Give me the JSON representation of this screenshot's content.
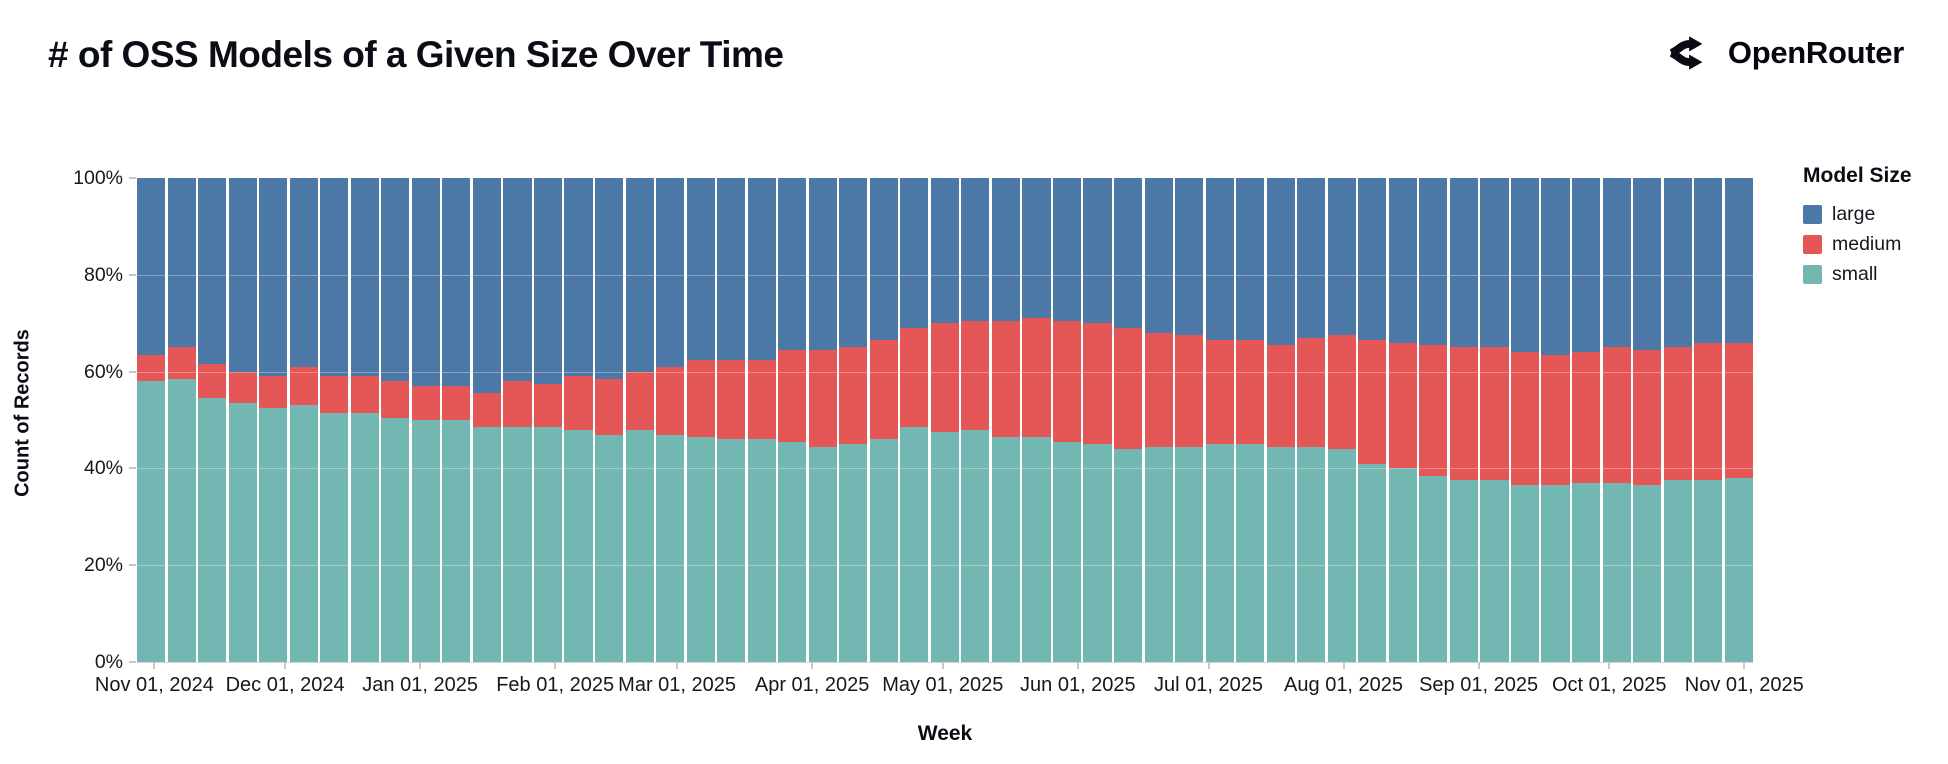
{
  "header": {
    "title": "# of OSS Models of a Given Size Over Time",
    "brand": "OpenRouter"
  },
  "chart_data": {
    "type": "bar",
    "stacked": true,
    "normalized_percent": true,
    "title": "# of OSS Models of a Given Size Over Time",
    "xlabel": "Week",
    "ylabel": "Count of Records",
    "ylim": [
      0,
      100
    ],
    "grid": true,
    "y_ticks": [
      {
        "value": 100,
        "label": "100%"
      },
      {
        "value": 80,
        "label": "80%"
      },
      {
        "value": 60,
        "label": "60%"
      },
      {
        "value": 40,
        "label": "40%"
      },
      {
        "value": 20,
        "label": "20%"
      },
      {
        "value": 0,
        "label": "0%"
      }
    ],
    "x_ticks": [
      "Nov 01, 2024",
      "Dec 01, 2024",
      "Jan 01, 2025",
      "Feb 01, 2025",
      "Mar 01, 2025",
      "Apr 01, 2025",
      "May 01, 2025",
      "Jun 01, 2025",
      "Jul 01, 2025",
      "Aug 01, 2025",
      "Sep 01, 2025",
      "Oct 01, 2025",
      "Nov 01, 2025"
    ],
    "weeks": [
      "2024-10-28",
      "2024-11-04",
      "2024-11-11",
      "2024-11-18",
      "2024-11-25",
      "2024-12-02",
      "2024-12-09",
      "2024-12-16",
      "2024-12-23",
      "2024-12-30",
      "2025-01-06",
      "2025-01-13",
      "2025-01-20",
      "2025-01-27",
      "2025-02-03",
      "2025-02-10",
      "2025-02-17",
      "2025-02-24",
      "2025-03-03",
      "2025-03-10",
      "2025-03-17",
      "2025-03-24",
      "2025-03-31",
      "2025-04-07",
      "2025-04-14",
      "2025-04-21",
      "2025-04-28",
      "2025-05-05",
      "2025-05-12",
      "2025-05-19",
      "2025-05-26",
      "2025-06-02",
      "2025-06-09",
      "2025-06-16",
      "2025-06-23",
      "2025-06-30",
      "2025-07-07",
      "2025-07-14",
      "2025-07-21",
      "2025-07-28",
      "2025-08-04",
      "2025-08-11",
      "2025-08-18",
      "2025-08-25",
      "2025-09-01",
      "2025-09-08",
      "2025-09-15",
      "2025-09-22",
      "2025-09-29",
      "2025-10-06",
      "2025-10-13",
      "2025-10-20",
      "2025-10-27"
    ],
    "series": [
      {
        "name": "large",
        "color": "#4c78a8",
        "values": [
          36.5,
          35,
          38.5,
          40,
          41,
          39,
          41,
          41,
          42,
          43,
          43,
          44.5,
          42,
          42.5,
          41,
          41.5,
          40,
          39,
          37.5,
          37.5,
          37.5,
          35.5,
          35.5,
          35,
          33.5,
          31,
          30,
          29.5,
          29.5,
          29,
          29.5,
          30,
          31,
          32,
          32.5,
          33.5,
          33.5,
          34.5,
          33,
          32.5,
          33.5,
          34,
          34.5,
          35,
          35,
          36,
          36.5,
          36,
          35,
          35.5,
          35,
          34,
          34
        ]
      },
      {
        "name": "medium",
        "color": "#e45756",
        "values": [
          5.5,
          6.5,
          7,
          6.5,
          6.5,
          8,
          7.5,
          7.5,
          7.5,
          7,
          7,
          7,
          9.5,
          9,
          11,
          11.5,
          12,
          14,
          16,
          16.5,
          16.5,
          19,
          20,
          20,
          20.5,
          20.5,
          22.5,
          22.5,
          24,
          24.5,
          25,
          25,
          25,
          23.5,
          23,
          21.5,
          21.5,
          21,
          22.5,
          23.5,
          25.5,
          26,
          27,
          27.5,
          27.5,
          27.5,
          27,
          27,
          28,
          28,
          27.5,
          28.5,
          28
        ]
      },
      {
        "name": "small",
        "color": "#72b7b2",
        "values": [
          58,
          58.5,
          54.5,
          53.5,
          52.5,
          53,
          51.5,
          51.5,
          50.5,
          50,
          50,
          48.5,
          48.5,
          48.5,
          48,
          47,
          48,
          47,
          46.5,
          46,
          46,
          45.5,
          44.5,
          45,
          46,
          48.5,
          47.5,
          48,
          46.5,
          46.5,
          45.5,
          45,
          44,
          44.5,
          44.5,
          45,
          45,
          44.5,
          44.5,
          44,
          41,
          40,
          38.5,
          37.5,
          37.5,
          36.5,
          36.5,
          37,
          37,
          36.5,
          37.5,
          37.5,
          38
        ]
      }
    ],
    "legend": {
      "title": "Model Size",
      "position": "right",
      "entries": [
        "large",
        "medium",
        "small"
      ]
    }
  }
}
